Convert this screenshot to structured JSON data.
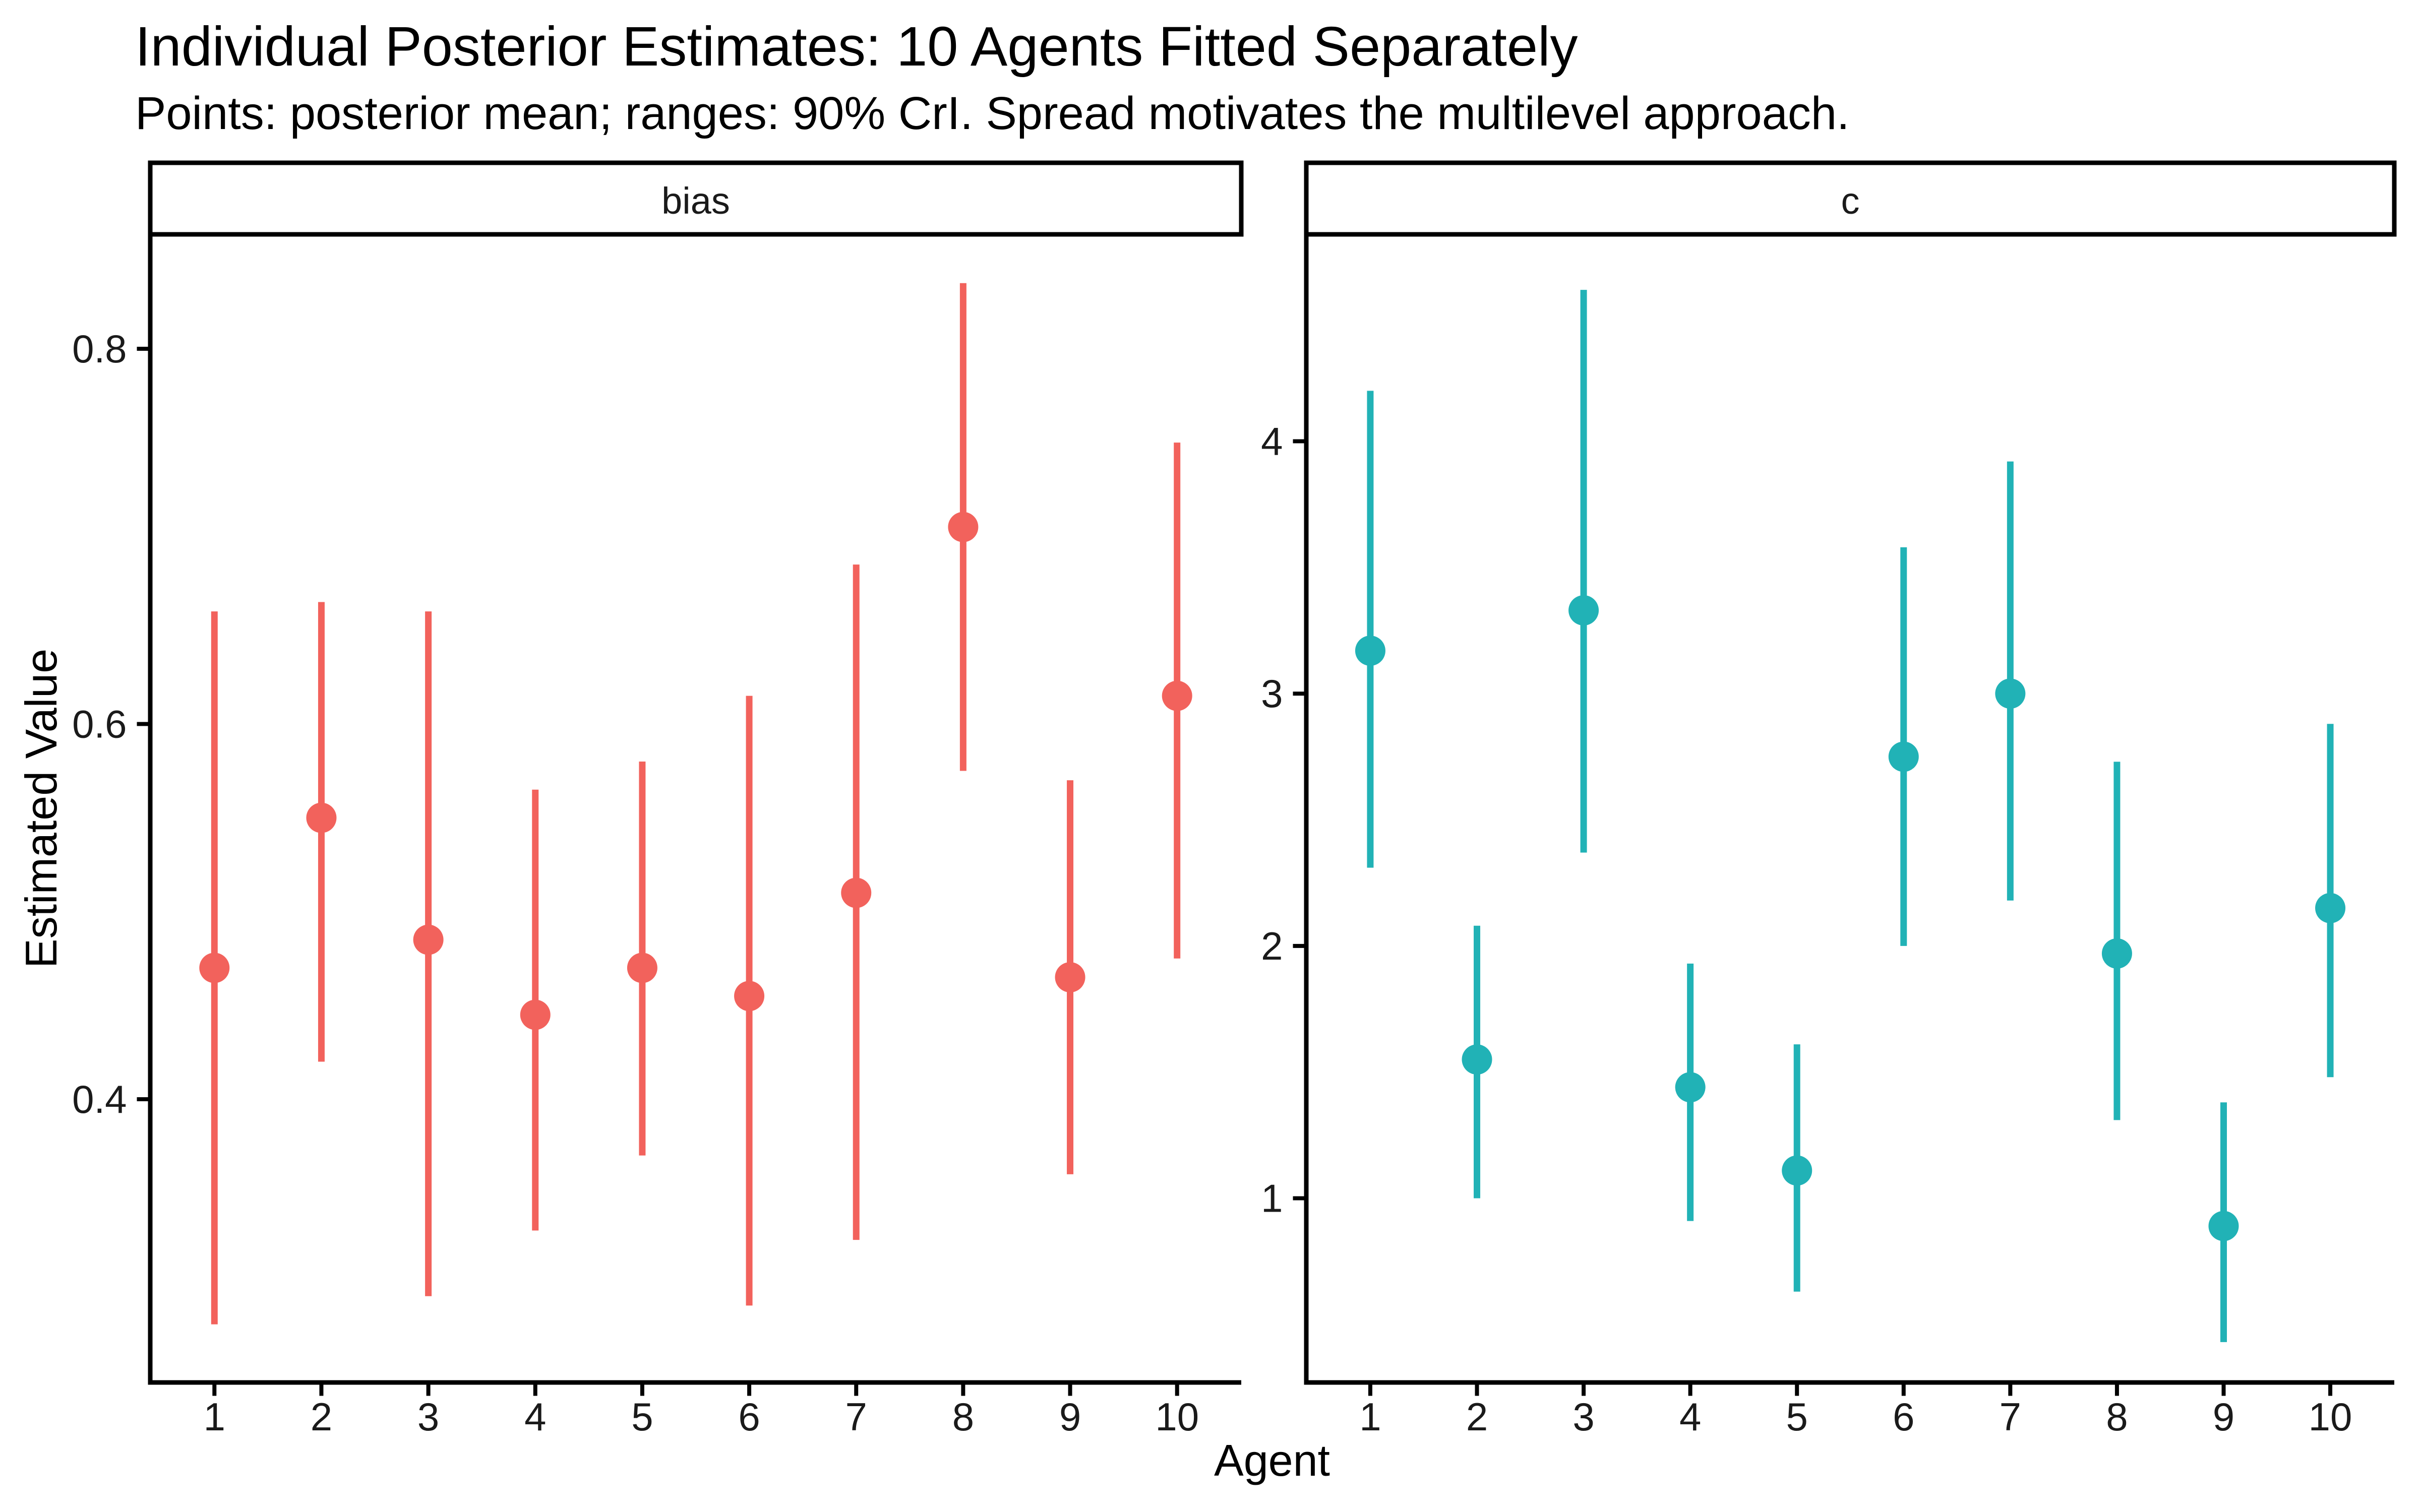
{
  "chart_data": {
    "type": "pointrange",
    "title": "Individual Posterior Estimates: 10 Agents Fitted Separately",
    "subtitle": "Points: posterior mean; ranges: 90% CrI. Spread motivates the multilevel approach.",
    "xlabel": "Agent",
    "ylabel": "Estimated Value",
    "categories": [
      "1",
      "2",
      "3",
      "4",
      "5",
      "6",
      "7",
      "8",
      "9",
      "10"
    ],
    "legend": false,
    "grid": false,
    "background_color": "#FFFFFF",
    "border_color": "#000000",
    "interval_note": "90% CrI",
    "facets": [
      {
        "label": "bias",
        "color": "#F2625C",
        "ylim": [
          0.249,
          0.861
        ],
        "yticks": [
          0.4,
          0.6,
          0.8
        ],
        "ytick_labels": [
          "0.4",
          "0.6",
          "0.8"
        ],
        "agents": [
          1,
          2,
          3,
          4,
          5,
          6,
          7,
          8,
          9,
          10
        ],
        "means": [
          0.47,
          0.55,
          0.485,
          0.445,
          0.47,
          0.455,
          0.51,
          0.705,
          0.465,
          0.615
        ],
        "lower": [
          0.28,
          0.42,
          0.295,
          0.33,
          0.37,
          0.29,
          0.325,
          0.575,
          0.36,
          0.475
        ],
        "upper": [
          0.66,
          0.665,
          0.66,
          0.565,
          0.58,
          0.615,
          0.685,
          0.835,
          0.57,
          0.75
        ]
      },
      {
        "label": "c",
        "color": "#21B2B6",
        "ylim": [
          0.27,
          4.82
        ],
        "yticks": [
          1,
          2,
          3,
          4
        ],
        "ytick_labels": [
          "1",
          "2",
          "3",
          "4"
        ],
        "agents": [
          1,
          2,
          3,
          4,
          5,
          6,
          7,
          8,
          9,
          10
        ],
        "means": [
          3.17,
          1.55,
          3.33,
          1.44,
          1.11,
          2.75,
          3.0,
          1.97,
          0.89,
          2.15
        ],
        "lower": [
          2.31,
          1.0,
          2.37,
          0.91,
          0.63,
          2.0,
          2.18,
          1.31,
          0.43,
          1.48
        ],
        "upper": [
          4.2,
          2.08,
          4.6,
          1.93,
          1.61,
          3.58,
          3.92,
          2.73,
          1.38,
          2.88
        ]
      }
    ]
  }
}
